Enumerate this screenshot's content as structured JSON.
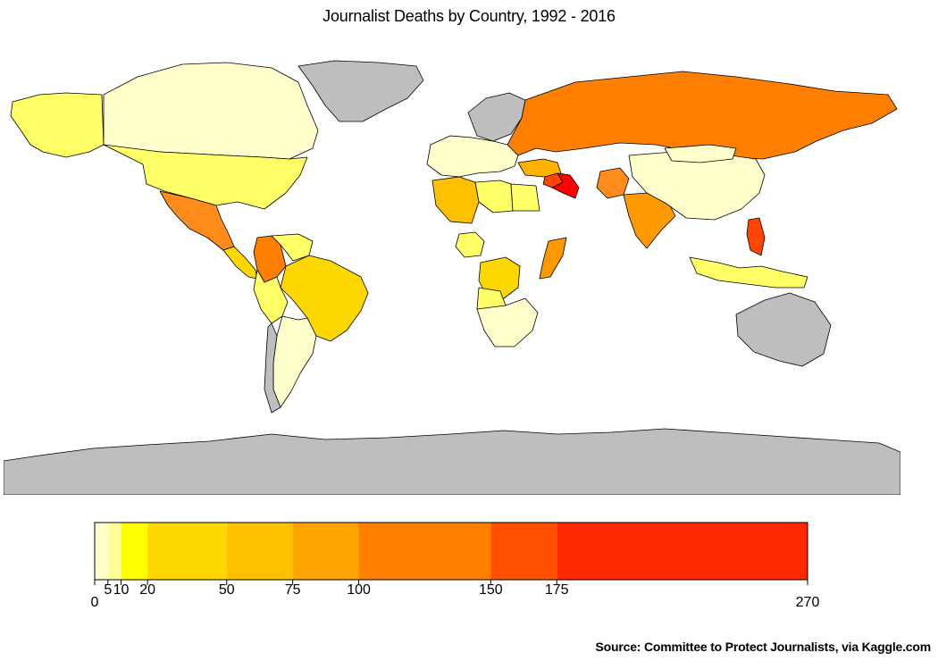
{
  "title": "Journalist Deaths by Country, 1992 - 2016",
  "source": "Source: Committee to Protect Journalists, via Kaggle.com",
  "map": {
    "no_data_color": "#bebebe",
    "border_color": "#000000",
    "regions": [
      {
        "name": "Alaska",
        "color": "#ffff66"
      },
      {
        "name": "Canada",
        "color": "#ffffcc"
      },
      {
        "name": "Greenland",
        "color": "#bebebe"
      },
      {
        "name": "United States",
        "color": "#ffff66"
      },
      {
        "name": "Mexico",
        "color": "#ff8c1a"
      },
      {
        "name": "Central America",
        "color": "#ffd700"
      },
      {
        "name": "Colombia",
        "color": "#ff7f00"
      },
      {
        "name": "Venezuela",
        "color": "#ffff66"
      },
      {
        "name": "Brazil",
        "color": "#ffd700"
      },
      {
        "name": "Peru",
        "color": "#ffff66"
      },
      {
        "name": "Argentina",
        "color": "#ffffcc"
      },
      {
        "name": "Chile",
        "color": "#bebebe"
      },
      {
        "name": "Europe",
        "color": "#ffffcc"
      },
      {
        "name": "Scandinavia",
        "color": "#bebebe"
      },
      {
        "name": "Russia",
        "color": "#ff8000"
      },
      {
        "name": "Turkey",
        "color": "#ffb300"
      },
      {
        "name": "Iraq",
        "color": "#ff0000"
      },
      {
        "name": "Syria",
        "color": "#ff4500"
      },
      {
        "name": "Algeria",
        "color": "#ffc000"
      },
      {
        "name": "Libya",
        "color": "#ffff66"
      },
      {
        "name": "Egypt",
        "color": "#ffff66"
      },
      {
        "name": "Nigeria",
        "color": "#ffff66"
      },
      {
        "name": "Somalia",
        "color": "#ff9900"
      },
      {
        "name": "Congo",
        "color": "#ffd700"
      },
      {
        "name": "Angola",
        "color": "#ffff66"
      },
      {
        "name": "Southern Africa",
        "color": "#ffffcc"
      },
      {
        "name": "Pakistan",
        "color": "#ff8c1a"
      },
      {
        "name": "India",
        "color": "#ff9900"
      },
      {
        "name": "China",
        "color": "#ffffcc"
      },
      {
        "name": "Mongolia",
        "color": "#ffffcc"
      },
      {
        "name": "Philippines",
        "color": "#ff4500"
      },
      {
        "name": "Indonesia",
        "color": "#ffff66"
      },
      {
        "name": "Australia",
        "color": "#bebebe"
      },
      {
        "name": "Antarctica",
        "color": "#bebebe"
      }
    ]
  },
  "legend": {
    "breaks": [
      0,
      5,
      10,
      20,
      50,
      75,
      100,
      150,
      175,
      270
    ],
    "tick_labels": [
      "0",
      "5",
      "10",
      "20",
      "50",
      "75",
      "100",
      "150",
      "175",
      "270"
    ],
    "colors": [
      "#ffffcc",
      "#ffff99",
      "#ffff00",
      "#ffd700",
      "#ffc000",
      "#ffa500",
      "#ff7f00",
      "#ff5000",
      "#ff2800",
      "#ff0000"
    ]
  }
}
